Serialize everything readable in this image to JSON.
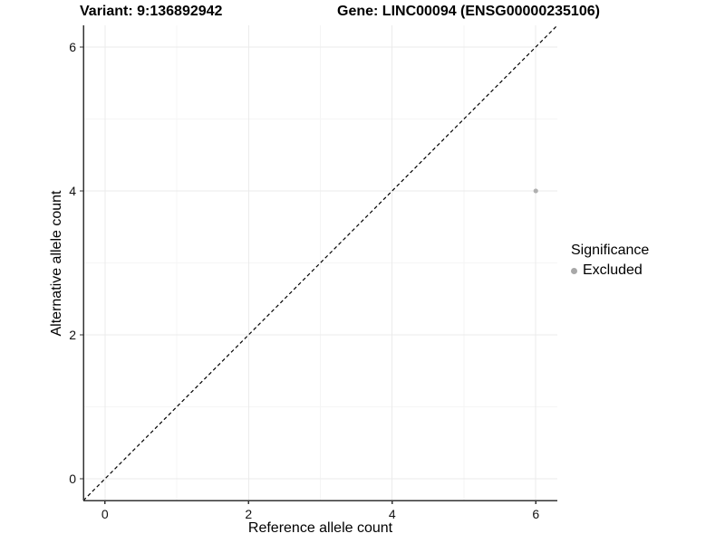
{
  "chart_data": {
    "type": "scatter",
    "title_left": "Variant: 9:136892942",
    "title_right": "Gene: LINC00094 (ENSG00000235106)",
    "xlabel": "Reference allele count",
    "ylabel": "Alternative allele count",
    "xlim": [
      -0.3,
      6.3
    ],
    "ylim": [
      -0.3,
      6.3
    ],
    "x_major_ticks": [
      0,
      2,
      4,
      6
    ],
    "y_major_ticks": [
      0,
      2,
      4,
      6
    ],
    "x_minor_ticks": [
      1,
      3,
      5
    ],
    "y_minor_ticks": [
      1,
      3,
      5
    ],
    "grid": true,
    "reference_line": {
      "type": "identity",
      "from_x": -0.3,
      "from_y": -0.3,
      "to_x": 6.3,
      "to_y": 6.3,
      "style": "dashed",
      "color": "#000000"
    },
    "series": [
      {
        "name": "Excluded",
        "color": "#b0b0b0",
        "points": [
          {
            "x": 6,
            "y": 4
          }
        ]
      }
    ],
    "legend": {
      "title": "Significance",
      "position": "right",
      "items": [
        {
          "label": "Excluded",
          "color": "#a8a8a8"
        }
      ]
    },
    "colors": {
      "background": "#ffffff",
      "axis_line": "#333333",
      "tick_mark": "#333333",
      "tick_label": "#111111",
      "grid_major": "#ebebeb",
      "grid_minor": "#f5f5f5"
    }
  }
}
